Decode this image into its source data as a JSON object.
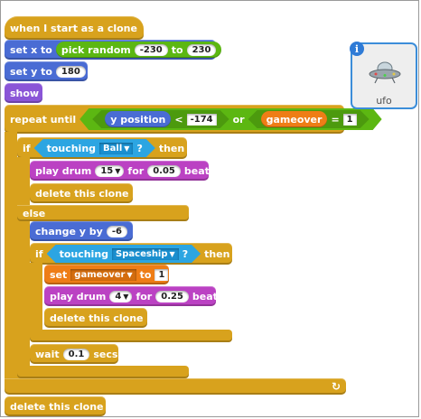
{
  "script": {
    "hat_label": "when I start as a clone",
    "set_x": {
      "label": "set x to",
      "pick": "pick random",
      "from": "-230",
      "to_word": "to",
      "to": "230"
    },
    "set_y": {
      "label": "set y to",
      "value": "180"
    },
    "show": "show",
    "repeat_until": {
      "label": "repeat until",
      "ypos": "y position",
      "lt": "<",
      "limit": "-174",
      "or": "or",
      "var": "gameover",
      "eq": "=",
      "eq_value": "1"
    },
    "if1": {
      "if": "if",
      "touching": "touching",
      "target": "Ball",
      "q": "?",
      "then": "then",
      "play_drum": "play drum",
      "drum": "15",
      "for": "for",
      "beats_value": "0.05",
      "beats": "beats",
      "delete": "delete this clone",
      "else": "else"
    },
    "change_y": {
      "label": "change y by",
      "value": "-6"
    },
    "if2": {
      "if": "if",
      "touching": "touching",
      "target": "Spaceship",
      "q": "?",
      "then": "then",
      "set": "set",
      "var": "gameover",
      "to": "to",
      "value": "1",
      "play_drum": "play drum",
      "drum": "4",
      "for": "for",
      "beats_value": "0.25",
      "beats": "beats",
      "delete": "delete this clone"
    },
    "wait": {
      "label": "wait",
      "value": "0.1",
      "secs": "secs"
    },
    "loop_arrow": "↻",
    "delete_end": "delete this clone"
  },
  "sprite": {
    "name": "ufo",
    "info": "i"
  }
}
